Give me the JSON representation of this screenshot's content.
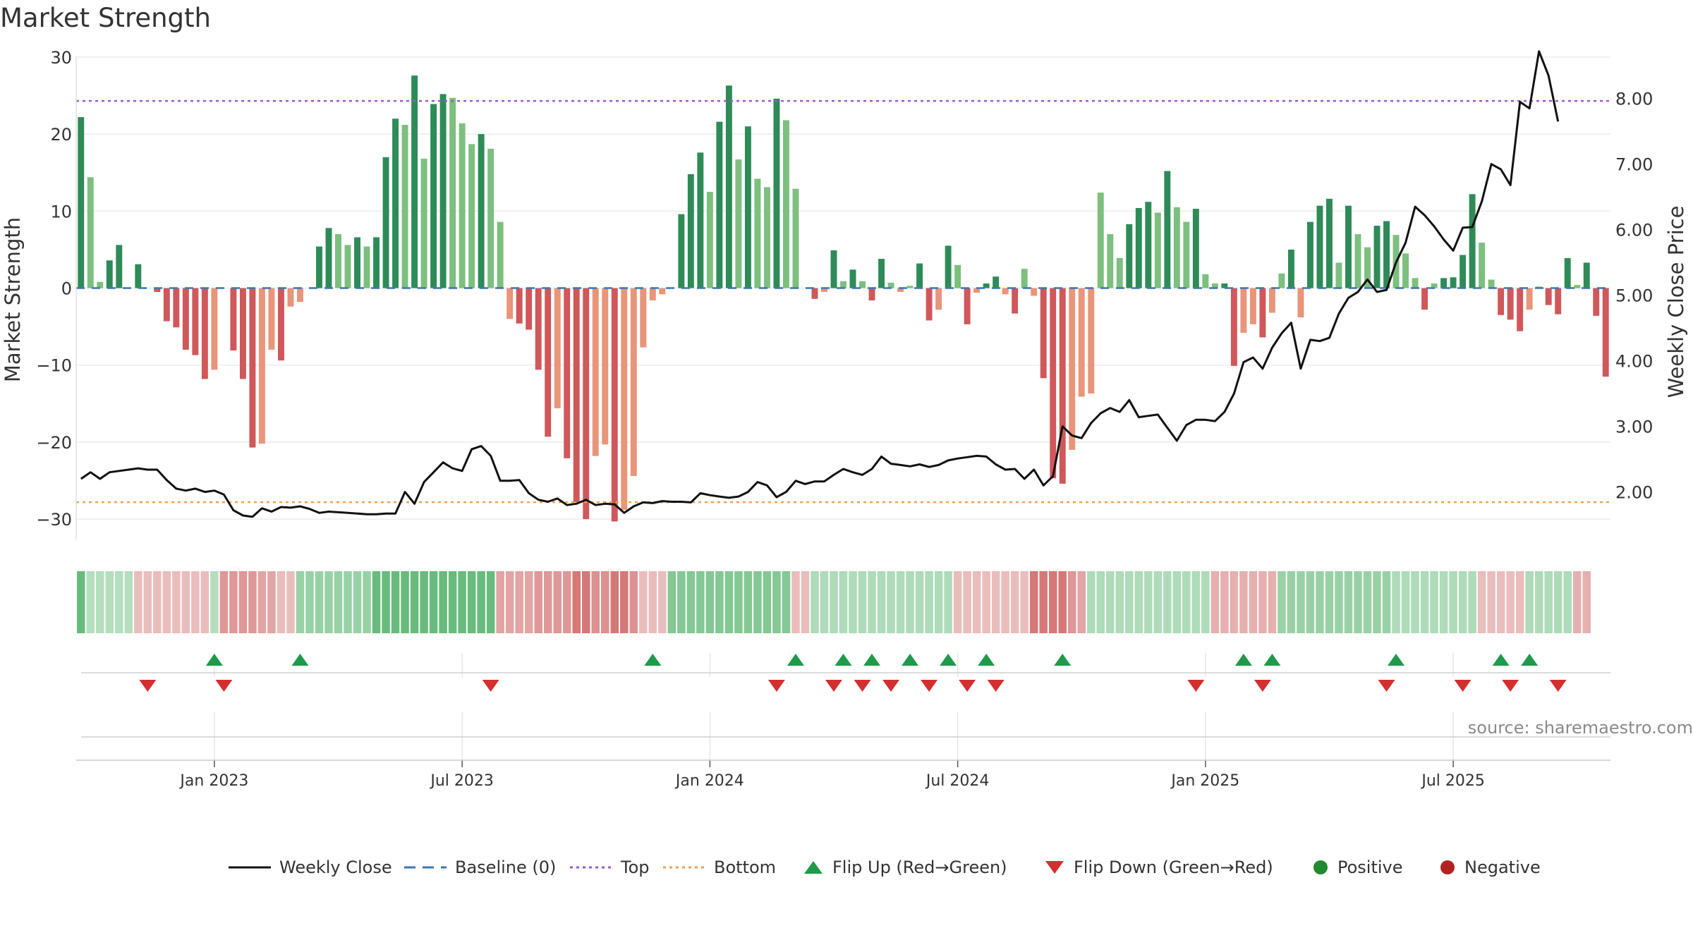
{
  "chart_data": {
    "type": "bar",
    "title": "Market Strength",
    "ylabel": "Market Strength",
    "y2label": "Weekly Close Price",
    "ylim": [
      -32,
      31
    ],
    "y2lim": [
      1.35,
      8.75
    ],
    "y_ticks": [
      30,
      20,
      10,
      0,
      -10,
      -20,
      -30
    ],
    "y_tick_labels": [
      "30",
      "20",
      "10",
      "0",
      "−10",
      "−20",
      "−30"
    ],
    "y2_ticks": [
      8.0,
      7.0,
      6.0,
      5.0,
      4.0,
      3.0,
      2.0
    ],
    "y2_tick_labels": [
      "8.00",
      "7.00",
      "6.00",
      "5.00",
      "4.00",
      "3.00",
      "2.00"
    ],
    "x_tick_labels": [
      "Jan 2023",
      "Jul 2023",
      "Jan 2024",
      "Jul 2024",
      "Jan 2025",
      "Jul 2025"
    ],
    "x_tick_week_index": [
      14,
      40,
      66,
      92,
      118,
      144
    ],
    "top_line": 24.3,
    "bottom_line": -27.8,
    "grid": true,
    "legend_position": "bottom",
    "strength": [
      22.2,
      14.4,
      0.8,
      3.6,
      5.6,
      0,
      3.1,
      0,
      -0.5,
      -4.3,
      -5.1,
      -8,
      -8.7,
      -11.8,
      -10.6,
      0,
      -8.1,
      -11.8,
      -20.7,
      -20.2,
      -8,
      -9.4,
      -2.4,
      -1.8,
      0,
      5.4,
      7.8,
      7.0,
      5.6,
      6.6,
      5.4,
      6.6,
      17.0,
      22.0,
      21.2,
      27.6,
      16.8,
      23.9,
      25.2,
      24.7,
      21.4,
      18.7,
      20.0,
      18.1,
      8.6,
      -4.0,
      -4.6,
      -5.4,
      -10.6,
      -19.3,
      -15.6,
      -22.1,
      -27.8,
      -30.0,
      -21.8,
      -20.3,
      -30.3,
      -28.8,
      -24.4,
      -7.7,
      -1.6,
      -0.8,
      0,
      9.6,
      14.8,
      17.6,
      12.5,
      21.6,
      26.3,
      16.7,
      21.0,
      14.2,
      13.1,
      24.6,
      21.8,
      12.9,
      0,
      -1.4,
      -0.5,
      4.9,
      0.9,
      2.4,
      0.9,
      -1.6,
      3.8,
      0.7,
      -0.5,
      0.3,
      3.2,
      -4.2,
      -2.8,
      5.5,
      3.0,
      -4.7,
      -0.6,
      0.6,
      1.5,
      -0.8,
      -3.3,
      2.5,
      -1.0,
      -11.7,
      -24.7,
      -25.4,
      -21.0,
      -14.1,
      -13.7,
      12.4,
      7.0,
      3.9,
      8.3,
      10.4,
      11.2,
      9.8,
      15.2,
      10.5,
      8.6,
      10.3,
      1.8,
      0.6,
      0.6,
      -10.1,
      -5.8,
      -4.7,
      -6.4,
      -3.2,
      1.9,
      5.0,
      -3.8,
      8.6,
      10.7,
      11.6,
      3.3,
      10.7,
      7.0,
      5.3,
      8.1,
      8.7,
      6.9,
      4.5,
      1.3,
      -2.8,
      0.6,
      1.3,
      1.4,
      4.3,
      12.2,
      5.9,
      1.1,
      -3.5,
      -4.1,
      -5.6,
      -2.8,
      0.2,
      -2.2,
      -3.4,
      3.9,
      0.4,
      3.3,
      -3.6,
      -11.5
    ],
    "close": [
      2.2,
      2.3,
      2.2,
      2.3,
      2.32,
      2.34,
      2.36,
      2.34,
      2.34,
      2.18,
      2.05,
      2.02,
      2.05,
      2.0,
      2.02,
      1.96,
      1.72,
      1.64,
      1.62,
      1.75,
      1.7,
      1.77,
      1.76,
      1.78,
      1.74,
      1.68,
      1.7,
      1.69,
      1.68,
      1.67,
      1.66,
      1.66,
      1.67,
      1.67,
      2.0,
      1.82,
      2.15,
      2.3,
      2.45,
      2.36,
      2.32,
      2.65,
      2.7,
      2.55,
      2.17,
      2.17,
      2.18,
      1.98,
      1.88,
      1.85,
      1.9,
      1.8,
      1.82,
      1.88,
      1.8,
      1.82,
      1.81,
      1.68,
      1.78,
      1.84,
      1.83,
      1.86,
      1.85,
      1.85,
      1.84,
      1.98,
      1.95,
      1.93,
      1.91,
      1.93,
      2.0,
      2.15,
      2.1,
      1.92,
      2.0,
      2.17,
      2.12,
      2.16,
      2.16,
      2.26,
      2.35,
      2.3,
      2.26,
      2.35,
      2.54,
      2.43,
      2.41,
      2.39,
      2.42,
      2.38,
      2.41,
      2.48,
      2.51,
      2.53,
      2.55,
      2.54,
      2.42,
      2.34,
      2.35,
      2.2,
      2.34,
      2.1,
      2.24,
      3.0,
      2.86,
      2.82,
      3.05,
      3.2,
      3.28,
      3.22,
      3.4,
      3.14,
      3.16,
      3.18,
      2.98,
      2.78,
      3.02,
      3.1,
      3.1,
      3.08,
      3.22,
      3.5,
      3.98,
      4.05,
      3.88,
      4.2,
      4.42,
      4.58,
      3.88,
      4.32,
      4.3,
      4.35,
      4.72,
      4.96,
      5.05,
      5.24,
      5.05,
      5.08,
      5.5,
      5.8,
      6.35,
      6.22,
      6.05,
      5.85,
      5.68,
      6.03,
      6.04,
      6.43,
      7.0,
      6.92,
      6.68,
      7.95,
      7.85,
      8.72,
      8.35,
      7.65
    ],
    "band": [
      0.8,
      0.25,
      0.25,
      0.25,
      0.25,
      0.25,
      -0.25,
      -0.25,
      -0.25,
      -0.25,
      -0.25,
      -0.25,
      -0.25,
      -0.25,
      0.25,
      -0.55,
      -0.55,
      -0.55,
      -0.55,
      -0.45,
      -0.45,
      -0.25,
      -0.25,
      0.45,
      0.45,
      0.45,
      0.45,
      0.45,
      0.45,
      0.45,
      0.45,
      0.8,
      0.8,
      0.8,
      0.8,
      0.8,
      0.8,
      0.8,
      0.8,
      0.8,
      0.8,
      0.8,
      0.8,
      0.8,
      -0.45,
      -0.45,
      -0.45,
      -0.45,
      -0.55,
      -0.55,
      -0.55,
      -0.55,
      -0.8,
      -0.8,
      -0.6,
      -0.6,
      -0.8,
      -0.8,
      -0.6,
      -0.25,
      -0.25,
      -0.25,
      0.6,
      0.6,
      0.6,
      0.6,
      0.6,
      0.6,
      0.6,
      0.6,
      0.6,
      0.6,
      0.6,
      0.6,
      0.6,
      -0.25,
      -0.25,
      0.3,
      0.3,
      0.3,
      0.3,
      0.3,
      0.3,
      0.3,
      0.3,
      0.3,
      0.3,
      0.3,
      0.3,
      0.3,
      0.3,
      0.3,
      -0.25,
      -0.25,
      -0.25,
      -0.25,
      -0.25,
      -0.25,
      -0.25,
      -0.25,
      -0.8,
      -0.8,
      -0.8,
      -0.8,
      -0.55,
      -0.45,
      0.3,
      0.3,
      0.3,
      0.3,
      0.3,
      0.3,
      0.3,
      0.3,
      0.3,
      0.3,
      0.3,
      0.3,
      0.3,
      -0.35,
      -0.35,
      -0.35,
      -0.35,
      -0.35,
      -0.35,
      -0.35,
      0.45,
      0.45,
      0.45,
      0.45,
      0.45,
      0.45,
      0.45,
      0.45,
      0.45,
      0.45,
      0.45,
      0.45,
      0.3,
      0.3,
      0.3,
      0.3,
      0.3,
      0.3,
      0.3,
      0.3,
      0.3,
      -0.25,
      -0.25,
      -0.25,
      -0.25,
      -0.25,
      0.3,
      0.3,
      0.3,
      0.3,
      0.3,
      -0.35,
      -0.35
    ],
    "flip_up_weeks": [
      14,
      23,
      60,
      75,
      80,
      83,
      87,
      91,
      95,
      103,
      122,
      125,
      138,
      149,
      152
    ],
    "flip_down_weeks": [
      7,
      15,
      43,
      73,
      79,
      82,
      85,
      89,
      93,
      96,
      117,
      124,
      137,
      145,
      150,
      155
    ]
  },
  "colors": {
    "pos_dark": "#2e8b57",
    "pos_light": "#7dbf7f",
    "neg_dark": "#d0575a",
    "neg_light": "#e8957a",
    "close_line": "#111111",
    "baseline": "#3a77b5",
    "top": "#9b59d0",
    "bottom": "#f0a050",
    "flip_up": "#1e9a4a",
    "flip_down": "#d32f2f",
    "positive": "#1f8a2e",
    "negative": "#b22222"
  },
  "legend": {
    "close": "Weekly Close",
    "baseline": "Baseline (0)",
    "top": "Top",
    "bottom": "Bottom",
    "flip_up": "Flip Up (Red→Green)",
    "flip_down": "Flip Down (Green→Red)",
    "positive": "Positive",
    "negative": "Negative"
  },
  "source": "source: sharemaestro.com"
}
